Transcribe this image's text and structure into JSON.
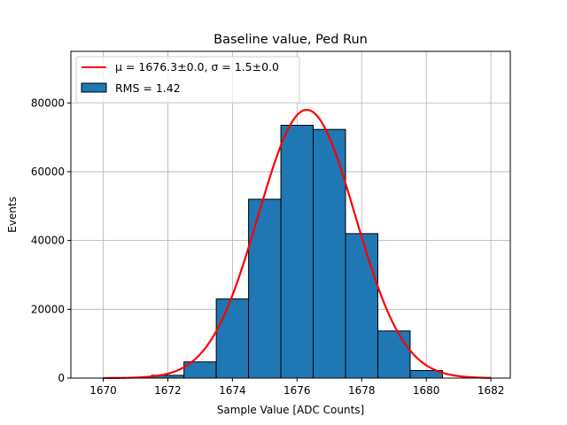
{
  "chart_data": {
    "type": "bar",
    "title": "Baseline value, Ped Run",
    "xlabel": "Sample Value [ADC Counts]",
    "ylabel": "Events",
    "xlim": [
      1669.0,
      1682.6
    ],
    "ylim": [
      0,
      95000
    ],
    "xticks": [
      1670,
      1672,
      1674,
      1676,
      1678,
      1680,
      1682
    ],
    "yticks": [
      0,
      20000,
      40000,
      60000,
      80000
    ],
    "grid": true,
    "legend_position": "top-left",
    "histogram": {
      "name": "RMS = 1.42",
      "color": "#1f77b4",
      "edge_color": "#000000",
      "bin_edges": [
        1669.5,
        1670.5,
        1671.5,
        1672.5,
        1673.5,
        1674.5,
        1675.5,
        1676.5,
        1677.5,
        1678.5,
        1679.5,
        1680.5,
        1681.5
      ],
      "counts": [
        0,
        0,
        800,
        4700,
        23000,
        52000,
        73500,
        72300,
        42000,
        13700,
        2200,
        0
      ]
    },
    "fit": {
      "name": "$\\mu = 1676.3\\pm0.0$, $\\sigma = 1.5\\pm0.0$",
      "legend_label": "μ = 1676.3±0.0, σ = 1.5±0.0",
      "color": "#ff0000",
      "type": "gaussian",
      "mu": 1676.3,
      "sigma": 1.5,
      "amplitude": 78000,
      "x_range": [
        1670,
        1682
      ]
    }
  }
}
